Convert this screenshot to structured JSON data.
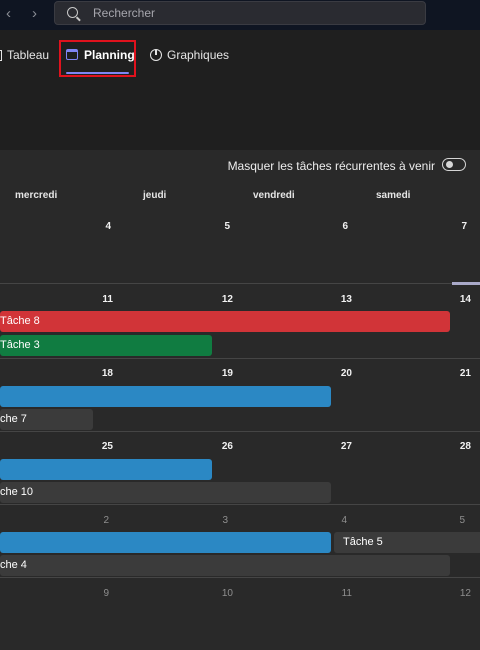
{
  "search": {
    "placeholder": "Rechercher"
  },
  "nav": {
    "back_glyph": "‹",
    "forward_glyph": "›"
  },
  "tabs": [
    {
      "label": "Tableau",
      "icon": "board-icon"
    },
    {
      "label": "Planning",
      "icon": "calendar-icon",
      "active": true
    },
    {
      "label": "Graphiques",
      "icon": "chart-icon"
    }
  ],
  "toggle": {
    "label": "Masquer les tâches récurrentes à venir",
    "checked": false
  },
  "calendar": {
    "weekdays": [
      "mercredi",
      "jeudi",
      "vendredi",
      "samedi"
    ],
    "weeks": [
      {
        "days": [
          "4",
          "5",
          "6",
          "7"
        ],
        "muted": false
      },
      {
        "days": [
          "11",
          "12",
          "13",
          "14"
        ],
        "muted": false
      },
      {
        "days": [
          "18",
          "19",
          "20",
          "21"
        ],
        "muted": false
      },
      {
        "days": [
          "25",
          "26",
          "27",
          "28"
        ],
        "muted": false
      },
      {
        "days": [
          "2",
          "3",
          "4",
          "5"
        ],
        "muted": true
      },
      {
        "days": [
          "9",
          "10",
          "11",
          "12"
        ],
        "muted": true
      }
    ],
    "tasks": [
      {
        "label": "Tâche 8",
        "color": "#d13438"
      },
      {
        "label": "Tâche 3",
        "color": "#107c41"
      },
      {
        "label": "",
        "color": "#2b88c4"
      },
      {
        "label": "che 7",
        "color": "#3b3b3b"
      },
      {
        "label": "",
        "color": "#2b88c4"
      },
      {
        "label": "che 10",
        "color": "#3b3b3b"
      },
      {
        "label": "",
        "color": "#2b88c4"
      },
      {
        "label": "Tâche 5",
        "color": "#3b3b3b"
      },
      {
        "label": "che 4",
        "color": "#3b3b3b"
      }
    ]
  }
}
